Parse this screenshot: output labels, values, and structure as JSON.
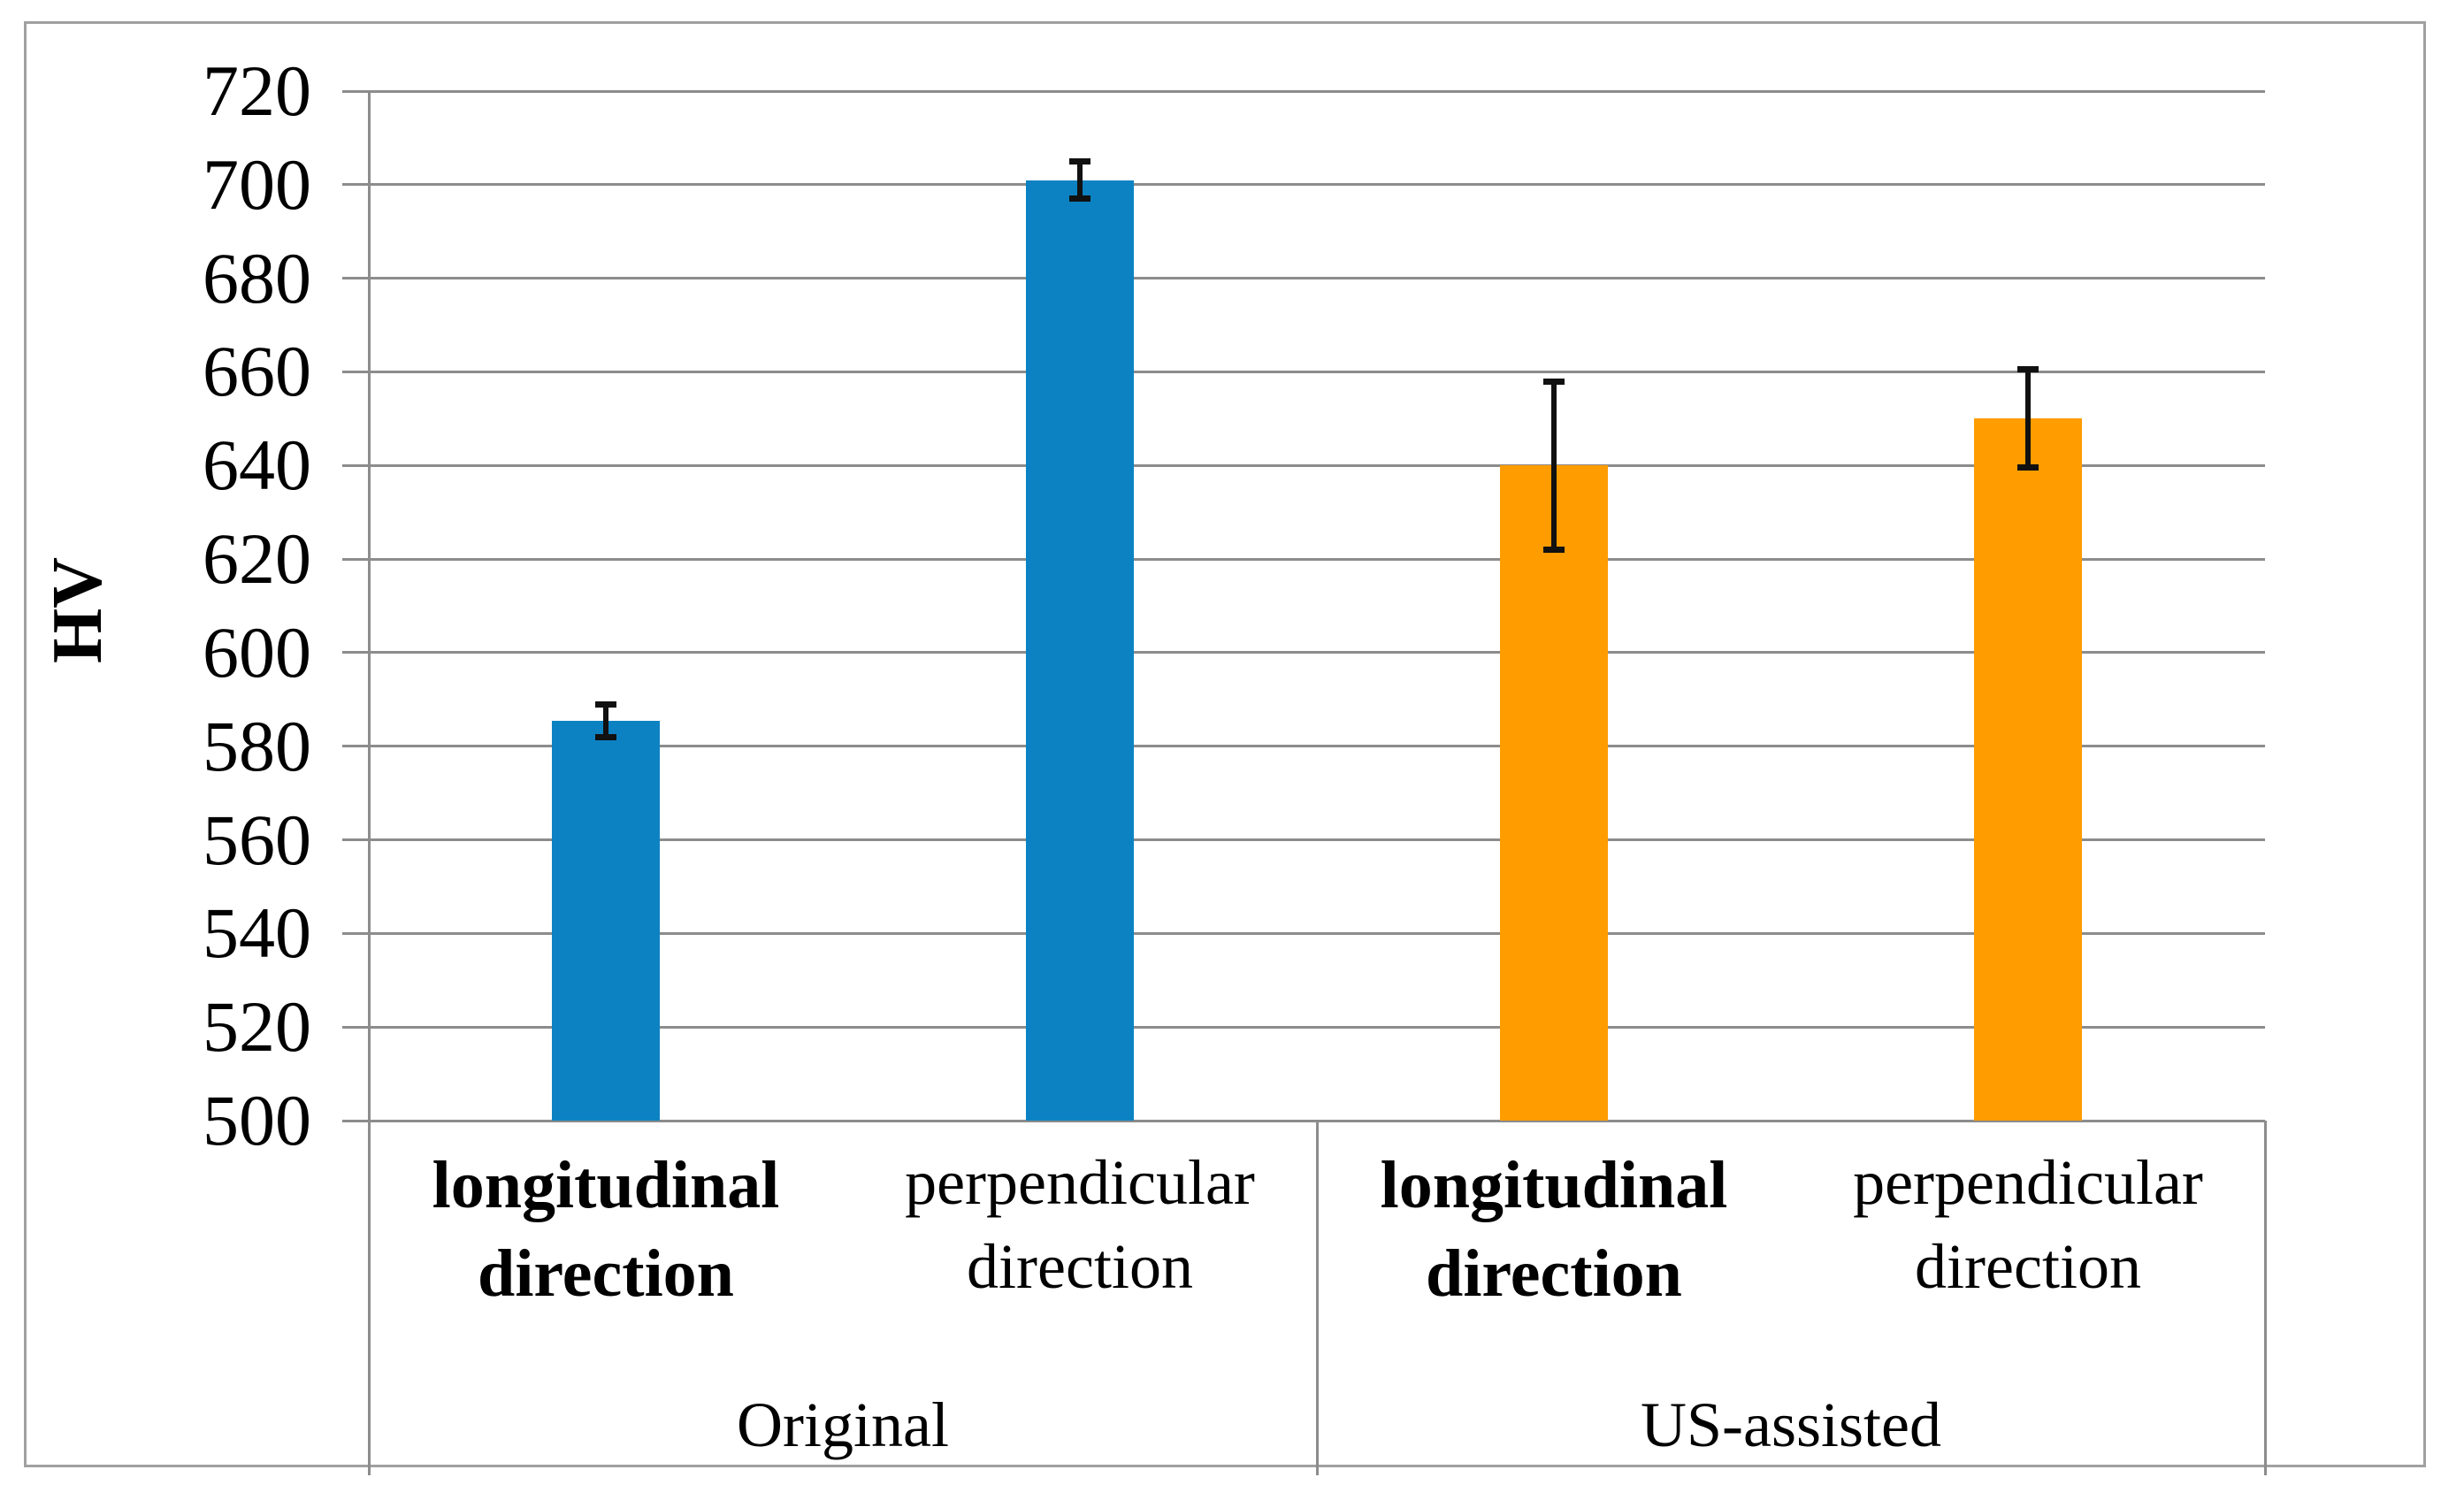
{
  "chart_data": {
    "type": "bar",
    "title": "",
    "xlabel": "",
    "ylabel": "HV",
    "ylim": [
      500,
      720
    ],
    "ytick_step": 20,
    "yticks": [
      500,
      520,
      540,
      560,
      580,
      600,
      620,
      640,
      660,
      680,
      700,
      720
    ],
    "grid": "horizontal",
    "legend": "none",
    "groups": [
      {
        "label": "Original",
        "color": "#0C82C2",
        "bars": [
          {
            "category": "longitudinal\ndirection",
            "value": 585.5,
            "error": 3.5,
            "bold_label": true
          },
          {
            "category": "perpendicular\ndirection",
            "value": 701,
            "error": 4,
            "bold_label": false
          }
        ]
      },
      {
        "label": "US-assisted",
        "color": "#FF9C00",
        "bars": [
          {
            "category": "longitudinal\ndirection",
            "value": 640,
            "error": 18,
            "bold_label": true
          },
          {
            "category": "perpendicular\ndirection",
            "value": 650,
            "error": 10.5,
            "bold_label": false
          }
        ]
      }
    ],
    "colors": {
      "original_series": "#0C82C2",
      "us_assisted_series": "#FF9C00",
      "error_bar": "#111111",
      "gridline": "#8C8C8C",
      "axis_line": "#8C8C8C",
      "figure_border": "#A0A0A0"
    }
  }
}
